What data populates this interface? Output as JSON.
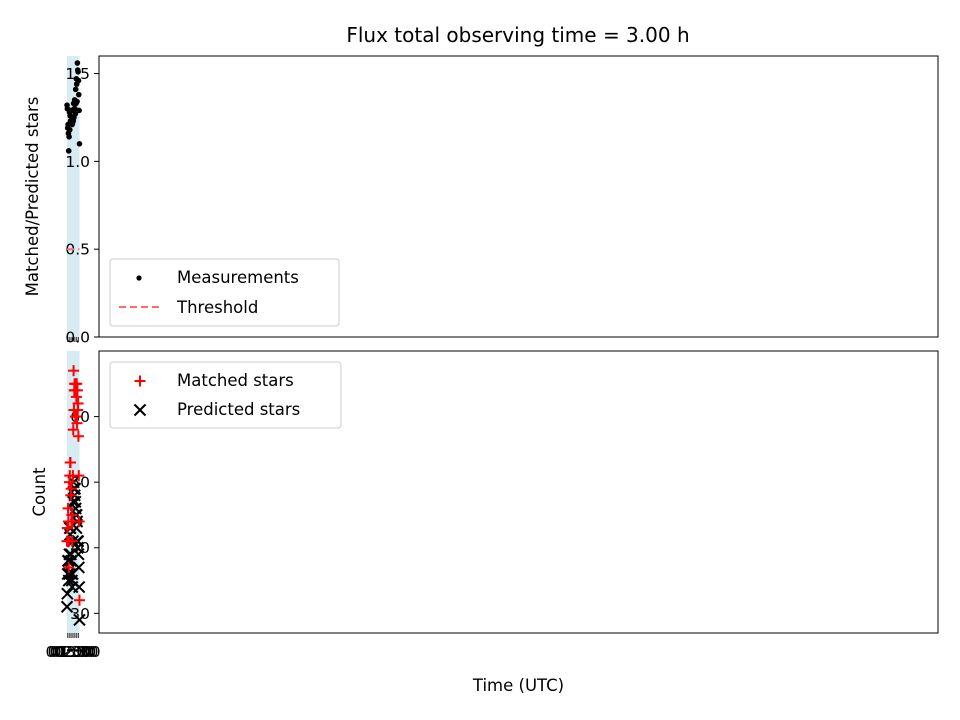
{
  "title": "Flux total observing time = 3.00 h",
  "colors": {
    "band": "#add8e6",
    "measurement": "#000000",
    "threshold": "#ff6b6b",
    "matched": "#ff0000",
    "predicted": "#000000"
  },
  "chart_data": [
    {
      "type": "scatter",
      "ylabel": "Matched/Predicted stars",
      "ylim": [
        0,
        1.6
      ],
      "yticks": [
        0.0,
        0.5,
        1.0,
        1.5
      ],
      "ytick_labels": [
        "0.0",
        "0.5",
        "1.0",
        "1.5"
      ],
      "legend_position": "lower-left",
      "shaded_interval": [
        "00:18",
        "03:18"
      ],
      "series": [
        {
          "name": "Measurements",
          "marker": "dot",
          "x": [
            "00:18",
            "00:23",
            "00:28",
            "00:33",
            "00:38",
            "00:43",
            "00:48",
            "00:53",
            "00:58",
            "01:03",
            "01:08",
            "01:13",
            "01:18",
            "01:23",
            "01:28",
            "01:33",
            "01:38",
            "01:43",
            "01:48",
            "01:53",
            "01:58",
            "02:03",
            "02:08",
            "02:13",
            "02:18",
            "02:23",
            "02:28",
            "02:33",
            "02:38",
            "02:43",
            "02:48",
            "02:53",
            "02:58",
            "03:03",
            "03:08",
            "03:13",
            "03:18"
          ],
          "y": [
            1.32,
            1.3,
            1.19,
            1.21,
            1.16,
            1.06,
            1.14,
            1.28,
            1.18,
            1.26,
            1.23,
            1.23,
            1.29,
            1.22,
            1.29,
            1.21,
            1.22,
            1.24,
            1.23,
            1.33,
            1.25,
            1.3,
            1.35,
            1.3,
            1.27,
            1.41,
            1.33,
            1.47,
            1.44,
            1.34,
            1.56,
            1.52,
            1.51,
            1.46,
            1.38,
            1.29,
            1.1
          ]
        },
        {
          "name": "Threshold",
          "style": "dashed",
          "x": [
            "00:18",
            "03:18"
          ],
          "y": [
            0.5,
            0.5
          ]
        }
      ]
    },
    {
      "type": "scatter",
      "xlabel": "Time (UTC)",
      "ylabel": "Count",
      "ylim": [
        27,
        70
      ],
      "yticks": [
        30,
        40,
        50,
        60
      ],
      "ytick_labels": [
        "30",
        "40",
        "50",
        "60"
      ],
      "xticks": [
        "00:30",
        "01:00",
        "01:30",
        "02:00",
        "02:30",
        "03:00"
      ],
      "legend_position": "upper-left",
      "shaded_interval": [
        "00:18",
        "03:18"
      ],
      "series": [
        {
          "name": "Matched stars",
          "marker": "plus",
          "x": [
            "00:18",
            "00:23",
            "00:28",
            "00:33",
            "00:38",
            "00:43",
            "00:48",
            "00:53",
            "00:58",
            "01:03",
            "01:08",
            "01:13",
            "01:18",
            "01:23",
            "01:28",
            "01:33",
            "01:38",
            "01:43",
            "01:48",
            "01:53",
            "01:58",
            "02:03",
            "02:08",
            "02:13",
            "02:18",
            "02:23",
            "02:28",
            "02:33",
            "02:38",
            "02:43",
            "02:48",
            "02:53",
            "02:58",
            "03:03",
            "03:08",
            "03:13",
            "03:18"
          ],
          "y": [
            41,
            43,
            43,
            46,
            44,
            37,
            41,
            50,
            51,
            53,
            53,
            48,
            49,
            44,
            45,
            41,
            44,
            51,
            58,
            67,
            61,
            64,
            65,
            64,
            60,
            65,
            60,
            63,
            65,
            59,
            64,
            61,
            62,
            57,
            51,
            44,
            32
          ]
        },
        {
          "name": "Predicted stars",
          "marker": "x",
          "x": [
            "00:18",
            "00:23",
            "00:28",
            "00:33",
            "00:38",
            "00:43",
            "00:48",
            "00:53",
            "00:58",
            "01:03",
            "01:08",
            "01:13",
            "01:18",
            "01:23",
            "01:28",
            "01:33",
            "01:38",
            "01:43",
            "01:48",
            "01:53",
            "01:58",
            "02:03",
            "02:08",
            "02:13",
            "02:18",
            "02:23",
            "02:28",
            "02:33",
            "02:38",
            "02:43",
            "02:48",
            "02:53",
            "02:58",
            "03:03",
            "03:08",
            "03:13",
            "03:18"
          ],
          "y": [
            31,
            33,
            36,
            38,
            38,
            35,
            36,
            39,
            43,
            42,
            43,
            39,
            38,
            36,
            35,
            34,
            36,
            41,
            47,
            50,
            49,
            49,
            48,
            49,
            47,
            46,
            45,
            43,
            45,
            44,
            41,
            40,
            41,
            39,
            37,
            34,
            29
          ]
        }
      ]
    }
  ]
}
